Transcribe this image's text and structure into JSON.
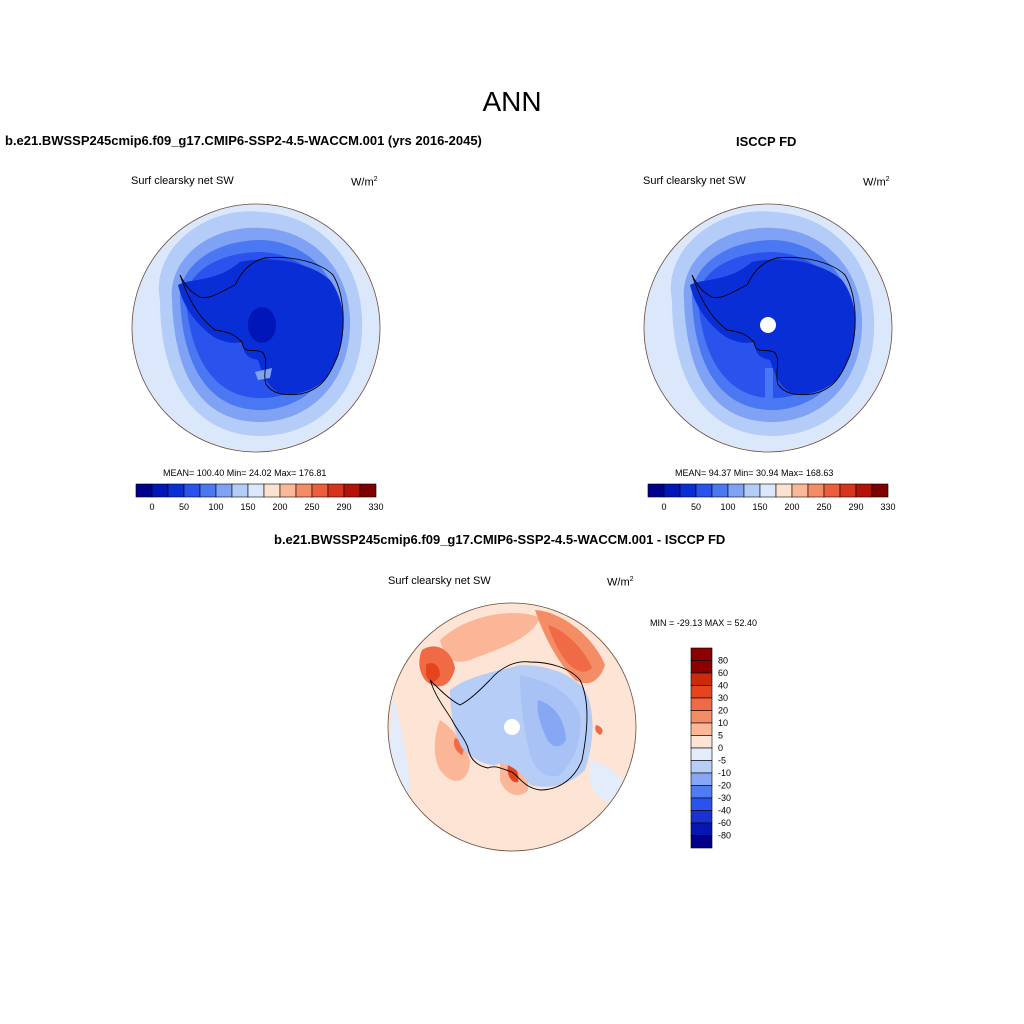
{
  "figure": {
    "season": "ANN",
    "colors": {
      "land_outline": "#000000",
      "missing": "#ffffff"
    }
  },
  "panels": {
    "model": {
      "title": "b.e21.BWSSP245cmip6.f09_g17.CMIP6-SSP2-4.5-WACCM.001 (yrs 2016-2045)",
      "variable": "Surf clearsky net SW",
      "units": "W/m",
      "units_sup": "2",
      "stats": "MEAN= 100.40  Min=  24.02  Max= 176.81",
      "mean": 100.4,
      "min": 24.02,
      "max": 176.81
    },
    "obs": {
      "title": "ISCCP FD",
      "variable": "Surf clearsky net SW",
      "units": "W/m",
      "units_sup": "2",
      "stats": "MEAN=  94.37  Min=  30.94  Max= 168.63",
      "mean": 94.37,
      "min": 30.94,
      "max": 168.63
    },
    "diff": {
      "title": "b.e21.BWSSP245cmip6.f09_g17.CMIP6-SSP2-4.5-WACCM.001 - ISCCP FD",
      "variable": "Surf clearsky net SW",
      "units": "W/m",
      "units_sup": "2",
      "stats": "MIN = -29.13 MAX =  52.40",
      "min": -29.13,
      "max": 52.4
    }
  },
  "colorbars": {
    "absolute": {
      "colors": [
        "#00008b",
        "#0016b8",
        "#0a2ed6",
        "#2a52ec",
        "#4a78f2",
        "#7fa2f4",
        "#b3ccf8",
        "#dbe8fb",
        "#fde2d2",
        "#f9b899",
        "#f48c66",
        "#ec5e3c",
        "#d8331c",
        "#b31207",
        "#7f0000"
      ],
      "tick_labels": [
        "0",
        "50",
        "100",
        "150",
        "200",
        "250",
        "290",
        "330"
      ]
    },
    "difference": {
      "colors": [
        "#00008b",
        "#0616b2",
        "#1a32d4",
        "#2a52ec",
        "#4f7cf2",
        "#86a8f4",
        "#b6cdf8",
        "#e3ecfb",
        "#fde4d4",
        "#fab697",
        "#f48c66",
        "#ef6a45",
        "#e6441f",
        "#cc2a0a",
        "#8b0000"
      ],
      "tick_labels": [
        "80",
        "60",
        "40",
        "30",
        "20",
        "10",
        "5",
        "0",
        "-5",
        "-10",
        "-20",
        "-30",
        "-40",
        "-60",
        "-80"
      ]
    }
  }
}
